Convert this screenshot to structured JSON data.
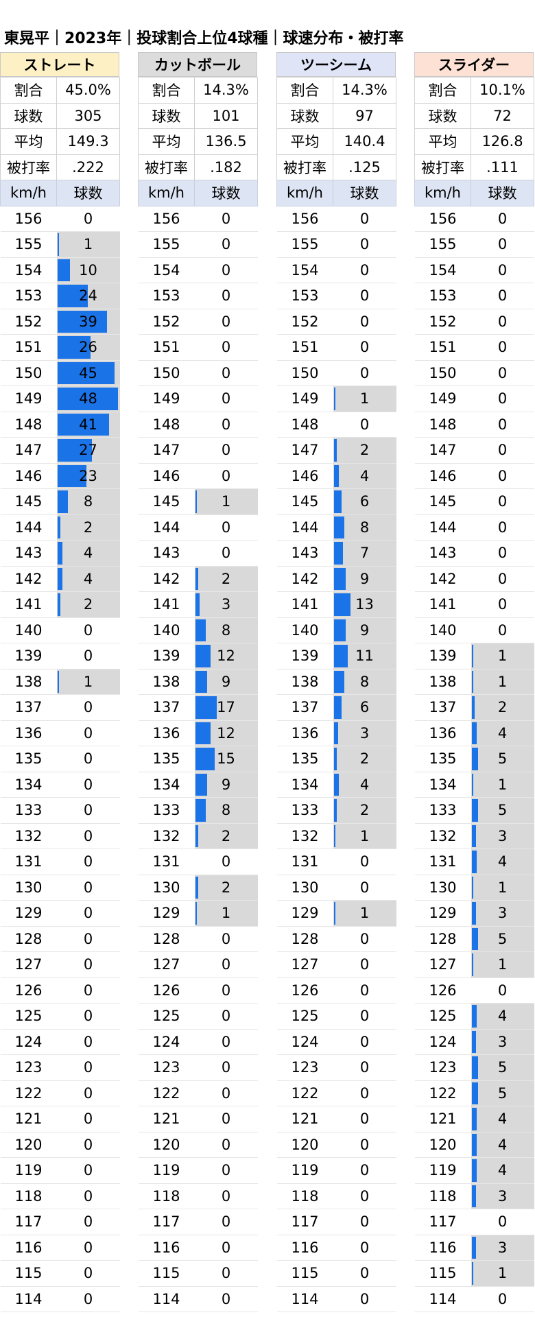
{
  "title": "東晃平｜2023年｜投球割合上位4球種｜球速分布・被打率",
  "speeds": [
    156,
    155,
    154,
    153,
    152,
    151,
    150,
    149,
    148,
    147,
    146,
    145,
    144,
    143,
    142,
    141,
    140,
    139,
    138,
    137,
    136,
    135,
    134,
    133,
    132,
    131,
    130,
    129,
    128,
    127,
    126,
    125,
    124,
    123,
    122,
    121,
    120,
    119,
    118,
    117,
    116,
    115,
    114
  ],
  "col_headers": {
    "speed": "km/h",
    "count": "球数"
  },
  "stat_labels": {
    "ratio": "割合",
    "count": "球数",
    "avg": "平均",
    "bavg": "被打率"
  },
  "colors": {
    "bar": "#1b73e8",
    "cell_bg": "#d9d9d9",
    "col_header_bg": "#dde4f3"
  },
  "chart_data": {
    "type": "table",
    "bar_max": 48,
    "pitches": [
      {
        "name": "ストレート",
        "header_color": "#fdf0c4",
        "ratio": "45.0%",
        "count": "305",
        "avg": "149.3",
        "bavg": ".222",
        "counts": [
          0,
          1,
          10,
          24,
          39,
          26,
          45,
          48,
          41,
          27,
          23,
          8,
          2,
          4,
          4,
          2,
          0,
          0,
          1,
          0,
          0,
          0,
          0,
          0,
          0,
          0,
          0,
          0,
          0,
          0,
          0,
          0,
          0,
          0,
          0,
          0,
          0,
          0,
          0,
          0,
          0,
          0,
          0
        ]
      },
      {
        "name": "カットボール",
        "header_color": "#dcdcdc",
        "ratio": "14.3%",
        "count": "101",
        "avg": "136.5",
        "bavg": ".182",
        "counts": [
          0,
          0,
          0,
          0,
          0,
          0,
          0,
          0,
          0,
          0,
          0,
          1,
          0,
          0,
          2,
          3,
          8,
          12,
          9,
          17,
          12,
          15,
          9,
          8,
          2,
          0,
          2,
          1,
          0,
          0,
          0,
          0,
          0,
          0,
          0,
          0,
          0,
          0,
          0,
          0,
          0,
          0,
          0
        ]
      },
      {
        "name": "ツーシーム",
        "header_color": "#dfe4f7",
        "ratio": "14.3%",
        "count": "97",
        "avg": "140.4",
        "bavg": ".125",
        "counts": [
          0,
          0,
          0,
          0,
          0,
          0,
          0,
          1,
          0,
          2,
          4,
          6,
          8,
          7,
          9,
          13,
          9,
          11,
          8,
          6,
          3,
          2,
          4,
          2,
          1,
          0,
          0,
          1,
          0,
          0,
          0,
          0,
          0,
          0,
          0,
          0,
          0,
          0,
          0,
          0,
          0,
          0,
          0
        ]
      },
      {
        "name": "スライダー",
        "header_color": "#fce1d4",
        "ratio": "10.1%",
        "count": "72",
        "avg": "126.8",
        "bavg": ".111",
        "counts": [
          0,
          0,
          0,
          0,
          0,
          0,
          0,
          0,
          0,
          0,
          0,
          0,
          0,
          0,
          0,
          0,
          0,
          1,
          1,
          2,
          4,
          5,
          1,
          5,
          3,
          4,
          1,
          3,
          5,
          1,
          0,
          4,
          3,
          5,
          5,
          4,
          4,
          4,
          3,
          0,
          3,
          1,
          0
        ]
      }
    ]
  }
}
